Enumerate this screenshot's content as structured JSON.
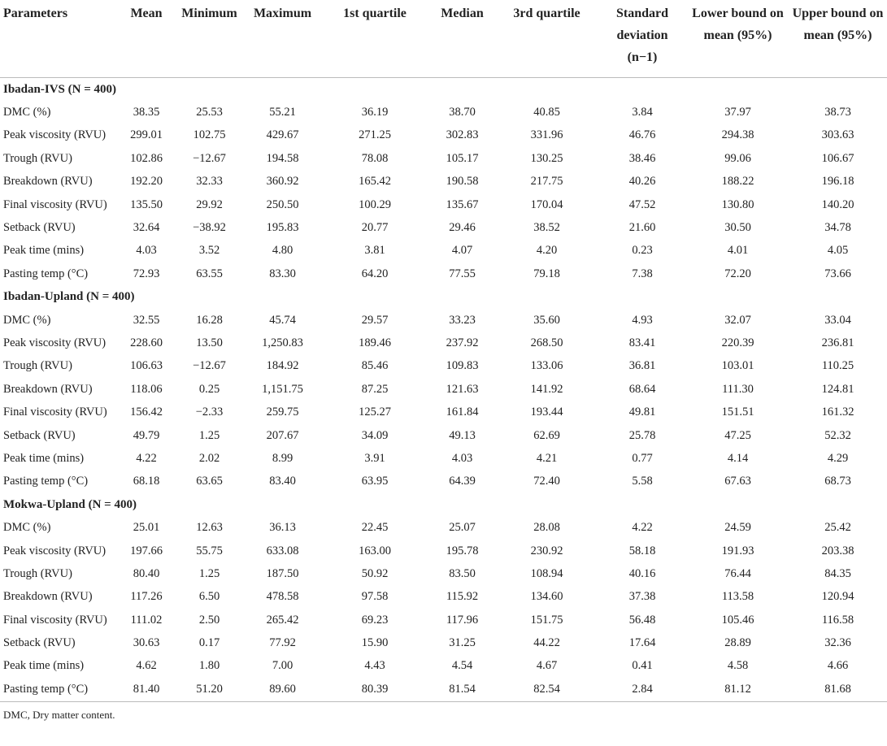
{
  "table": {
    "columns": [
      "Parameters",
      "Mean",
      "Minimum",
      "Maximum",
      "1st quartile",
      "Median",
      "3rd quartile",
      "Standard deviation (n−1)",
      "Lower bound on mean (95%)",
      "Upper bound on mean (95%)"
    ],
    "sections": [
      {
        "label": "Ibadan-IVS (N = 400)",
        "rows": [
          [
            "DMC (%)",
            "38.35",
            "25.53",
            "55.21",
            "36.19",
            "38.70",
            "40.85",
            "3.84",
            "37.97",
            "38.73"
          ],
          [
            "Peak viscosity (RVU)",
            "299.01",
            "102.75",
            "429.67",
            "271.25",
            "302.83",
            "331.96",
            "46.76",
            "294.38",
            "303.63"
          ],
          [
            "Trough (RVU)",
            "102.86",
            "−12.67",
            "194.58",
            "78.08",
            "105.17",
            "130.25",
            "38.46",
            "99.06",
            "106.67"
          ],
          [
            "Breakdown (RVU)",
            "192.20",
            "32.33",
            "360.92",
            "165.42",
            "190.58",
            "217.75",
            "40.26",
            "188.22",
            "196.18"
          ],
          [
            "Final viscosity (RVU)",
            "135.50",
            "29.92",
            "250.50",
            "100.29",
            "135.67",
            "170.04",
            "47.52",
            "130.80",
            "140.20"
          ],
          [
            "Setback (RVU)",
            "32.64",
            "−38.92",
            "195.83",
            "20.77",
            "29.46",
            "38.52",
            "21.60",
            "30.50",
            "34.78"
          ],
          [
            "Peak time (mins)",
            "4.03",
            "3.52",
            "4.80",
            "3.81",
            "4.07",
            "4.20",
            "0.23",
            "4.01",
            "4.05"
          ],
          [
            "Pasting temp (°C)",
            "72.93",
            "63.55",
            "83.30",
            "64.20",
            "77.55",
            "79.18",
            "7.38",
            "72.20",
            "73.66"
          ]
        ]
      },
      {
        "label": "Ibadan-Upland (N = 400)",
        "rows": [
          [
            "DMC (%)",
            "32.55",
            "16.28",
            "45.74",
            "29.57",
            "33.23",
            "35.60",
            "4.93",
            "32.07",
            "33.04"
          ],
          [
            "Peak viscosity (RVU)",
            "228.60",
            "13.50",
            "1,250.83",
            "189.46",
            "237.92",
            "268.50",
            "83.41",
            "220.39",
            "236.81"
          ],
          [
            "Trough (RVU)",
            "106.63",
            "−12.67",
            "184.92",
            "85.46",
            "109.83",
            "133.06",
            "36.81",
            "103.01",
            "110.25"
          ],
          [
            "Breakdown (RVU)",
            "118.06",
            "0.25",
            "1,151.75",
            "87.25",
            "121.63",
            "141.92",
            "68.64",
            "111.30",
            "124.81"
          ],
          [
            "Final viscosity (RVU)",
            "156.42",
            "−2.33",
            "259.75",
            "125.27",
            "161.84",
            "193.44",
            "49.81",
            "151.51",
            "161.32"
          ],
          [
            "Setback (RVU)",
            "49.79",
            "1.25",
            "207.67",
            "34.09",
            "49.13",
            "62.69",
            "25.78",
            "47.25",
            "52.32"
          ],
          [
            "Peak time (mins)",
            "4.22",
            "2.02",
            "8.99",
            "3.91",
            "4.03",
            "4.21",
            "0.77",
            "4.14",
            "4.29"
          ],
          [
            "Pasting temp (°C)",
            "68.18",
            "63.65",
            "83.40",
            "63.95",
            "64.39",
            "72.40",
            "5.58",
            "67.63",
            "68.73"
          ]
        ]
      },
      {
        "label": "Mokwa-Upland (N = 400)",
        "rows": [
          [
            "DMC (%)",
            "25.01",
            "12.63",
            "36.13",
            "22.45",
            "25.07",
            "28.08",
            "4.22",
            "24.59",
            "25.42"
          ],
          [
            "Peak viscosity (RVU)",
            "197.66",
            "55.75",
            "633.08",
            "163.00",
            "195.78",
            "230.92",
            "58.18",
            "191.93",
            "203.38"
          ],
          [
            "Trough (RVU)",
            "80.40",
            "1.25",
            "187.50",
            "50.92",
            "83.50",
            "108.94",
            "40.16",
            "76.44",
            "84.35"
          ],
          [
            "Breakdown (RVU)",
            "117.26",
            "6.50",
            "478.58",
            "97.58",
            "115.92",
            "134.60",
            "37.38",
            "113.58",
            "120.94"
          ],
          [
            "Final viscosity (RVU)",
            "111.02",
            "2.50",
            "265.42",
            "69.23",
            "117.96",
            "151.75",
            "56.48",
            "105.46",
            "116.58"
          ],
          [
            "Setback (RVU)",
            "30.63",
            "0.17",
            "77.92",
            "15.90",
            "31.25",
            "44.22",
            "17.64",
            "28.89",
            "32.36"
          ],
          [
            "Peak time (mins)",
            "4.62",
            "1.80",
            "7.00",
            "4.43",
            "4.54",
            "4.67",
            "0.41",
            "4.58",
            "4.66"
          ],
          [
            "Pasting temp (°C)",
            "81.40",
            "51.20",
            "89.60",
            "80.39",
            "81.54",
            "82.54",
            "2.84",
            "81.12",
            "81.68"
          ]
        ]
      }
    ]
  },
  "footnote": "DMC, Dry matter content."
}
